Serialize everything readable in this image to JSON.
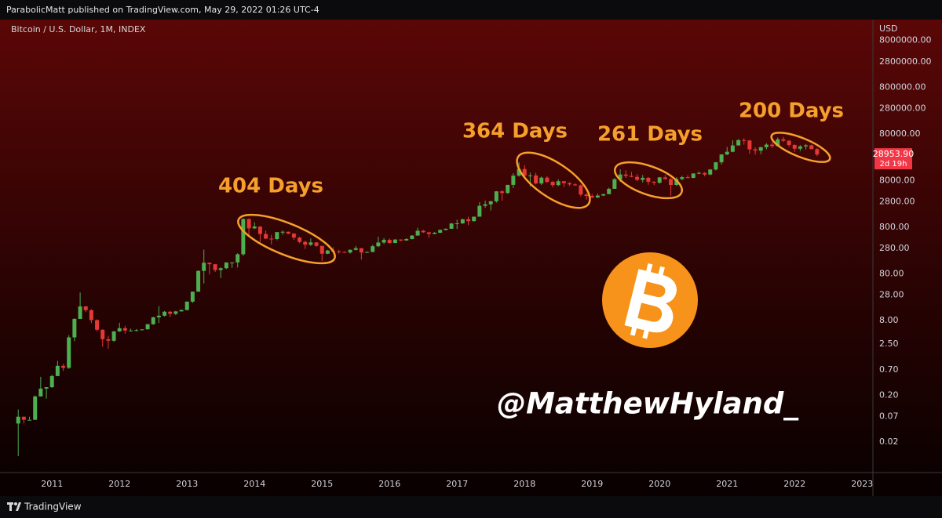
{
  "header": "ParabolicMatt published on TradingView.com, May 29, 2022 01:26 UTC-4",
  "footer": "TradingView",
  "chart_data": {
    "type": "candlestick",
    "title": "Bitcoin / U.S. Dollar, 1M, INDEX",
    "unit": "USD",
    "x": [
      2010.5,
      2010.583,
      2010.667,
      2010.75,
      2010.833,
      2010.917,
      2011,
      2011.083,
      2011.167,
      2011.25,
      2011.333,
      2011.417,
      2011.5,
      2011.583,
      2011.667,
      2011.75,
      2011.833,
      2011.917,
      2012,
      2012.083,
      2012.167,
      2012.25,
      2012.333,
      2012.417,
      2012.5,
      2012.583,
      2012.667,
      2012.75,
      2012.833,
      2012.917,
      2013,
      2013.083,
      2013.167,
      2013.25,
      2013.333,
      2013.417,
      2013.5,
      2013.583,
      2013.667,
      2013.75,
      2013.833,
      2013.917,
      2014,
      2014.083,
      2014.167,
      2014.25,
      2014.333,
      2014.417,
      2014.5,
      2014.583,
      2014.667,
      2014.75,
      2014.833,
      2014.917,
      2015,
      2015.083,
      2015.167,
      2015.25,
      2015.333,
      2015.417,
      2015.5,
      2015.583,
      2015.667,
      2015.75,
      2015.833,
      2015.917,
      2016,
      2016.083,
      2016.167,
      2016.25,
      2016.333,
      2016.417,
      2016.5,
      2016.583,
      2016.667,
      2016.75,
      2016.833,
      2016.917,
      2017,
      2017.083,
      2017.167,
      2017.25,
      2017.333,
      2017.417,
      2017.5,
      2017.583,
      2017.667,
      2017.75,
      2017.833,
      2017.917,
      2018,
      2018.083,
      2018.167,
      2018.25,
      2018.333,
      2018.417,
      2018.5,
      2018.583,
      2018.667,
      2018.75,
      2018.833,
      2018.917,
      2019,
      2019.083,
      2019.167,
      2019.25,
      2019.333,
      2019.417,
      2019.5,
      2019.583,
      2019.667,
      2019.75,
      2019.833,
      2019.917,
      2020,
      2020.083,
      2020.167,
      2020.25,
      2020.333,
      2020.417,
      2020.5,
      2020.583,
      2020.667,
      2020.75,
      2020.833,
      2020.917,
      2021,
      2021.083,
      2021.167,
      2021.25,
      2021.333,
      2021.417,
      2021.5,
      2021.583,
      2021.667,
      2021.75,
      2021.833,
      2021.917,
      2022,
      2022.083,
      2022.167,
      2022.25,
      2022.333
    ],
    "open": [
      0.05,
      0.07,
      0.06,
      0.06,
      0.19,
      0.28,
      0.3,
      0.52,
      0.86,
      0.78,
      3.5,
      8.7,
      16.1,
      13.4,
      8.2,
      5.1,
      3.2,
      2.97,
      4.7,
      5.5,
      4.9,
      4.9,
      5.0,
      5.2,
      6.7,
      9.4,
      10.2,
      12.4,
      11.2,
      12.6,
      13.5,
      20.4,
      33.4,
      93,
      139,
      129,
      97,
      106,
      141,
      141,
      211,
      1205,
      757,
      830,
      573,
      457,
      448,
      630,
      640,
      585,
      480,
      388,
      338,
      378,
      320,
      217,
      254,
      244,
      236,
      230,
      263,
      284,
      230,
      236,
      314,
      377,
      430,
      368,
      437,
      416,
      448,
      531,
      673,
      624,
      575,
      609,
      700,
      742,
      963,
      970,
      1190,
      1080,
      1348,
      2300,
      2480,
      2875,
      4700,
      4340,
      6470,
      10200,
      14150,
      10200,
      10300,
      6930,
      9240,
      7500,
      6400,
      7730,
      7030,
      6620,
      6320,
      4020,
      3740,
      3460,
      3820,
      4100,
      5320,
      8560,
      10800,
      10080,
      9600,
      8300,
      9150,
      7550,
      7190,
      9350,
      8600,
      6440,
      8630,
      9450,
      9140,
      11350,
      11650,
      10780,
      13800,
      19700,
      28990,
      33100,
      45200,
      58800,
      57700,
      37300,
      35040,
      41460,
      47100,
      43800,
      61300,
      57000,
      46300,
      38500,
      43200,
      45500,
      37700
    ],
    "high": [
      0.1,
      0.07,
      0.07,
      0.2,
      0.5,
      0.3,
      0.55,
      1.1,
      0.95,
      3.9,
      9.0,
      31.9,
      16.5,
      14.0,
      8.5,
      5.2,
      3.8,
      4.8,
      7.2,
      6.2,
      5.4,
      5.3,
      5.2,
      6.8,
      9.7,
      16.4,
      12.9,
      12.9,
      12.9,
      13.9,
      20.7,
      33.5,
      95,
      266,
      139,
      129,
      111,
      141,
      142,
      222,
      1242,
      1230,
      1020,
      835,
      680,
      550,
      630,
      680,
      650,
      600,
      500,
      415,
      460,
      385,
      320,
      263,
      300,
      263,
      246,
      268,
      318,
      285,
      243,
      335,
      502,
      468,
      462,
      442,
      440,
      466,
      541,
      780,
      702,
      626,
      630,
      720,
      755,
      980,
      1162,
      1210,
      1350,
      1350,
      2760,
      2980,
      2950,
      4760,
      4980,
      6470,
      11500,
      19800,
      17200,
      11800,
      11700,
      9750,
      10000,
      7780,
      8500,
      7760,
      7410,
      7000,
      6600,
      4300,
      4110,
      4200,
      4120,
      5620,
      9100,
      13900,
      13200,
      12300,
      10900,
      10500,
      9500,
      7750,
      9580,
      10520,
      9200,
      9460,
      10070,
      10430,
      11450,
      12480,
      12090,
      14100,
      19900,
      29300,
      41950,
      58350,
      61800,
      64900,
      59500,
      41300,
      42300,
      50500,
      52900,
      67000,
      69000,
      59100,
      47900,
      45800,
      48200,
      47400,
      40000
    ],
    "low": [
      0.01,
      0.05,
      0.06,
      0.06,
      0.19,
      0.17,
      0.29,
      0.52,
      0.67,
      0.74,
      2.9,
      8.7,
      12.2,
      7.1,
      4.7,
      2.2,
      2.0,
      2.8,
      4.6,
      4.2,
      4.7,
      4.7,
      4.9,
      5.2,
      6.5,
      7.1,
      9.8,
      9.6,
      10.5,
      12.6,
      13.2,
      19.1,
      33,
      50,
      78,
      88,
      65,
      102,
      108,
      110,
      195,
      522,
      730,
      380,
      450,
      340,
      422,
      550,
      565,
      430,
      364,
      275,
      318,
      305,
      152,
      212,
      237,
      217,
      228,
      219,
      253,
      162,
      225,
      236,
      300,
      350,
      355,
      366,
      400,
      414,
      440,
      531,
      606,
      480,
      568,
      605,
      684,
      741,
      735,
      946,
      890,
      1057,
      1343,
      2080,
      1830,
      2700,
      2970,
      4160,
      5510,
      9700,
      9400,
      6000,
      6600,
      6450,
      7100,
      5780,
      6070,
      5880,
      6130,
      6200,
      3650,
      3130,
      3400,
      3390,
      3730,
      4080,
      5320,
      7500,
      9100,
      9400,
      7800,
      7300,
      6500,
      6430,
      6850,
      8430,
      3800,
      6150,
      8100,
      8900,
      8970,
      10960,
      9900,
      10420,
      13200,
      17600,
      28100,
      32300,
      45000,
      47000,
      30000,
      28800,
      29300,
      37300,
      39600,
      43300,
      53300,
      42000,
      32900,
      34300,
      37200,
      37600,
      26700
    ],
    "close": [
      0.07,
      0.06,
      0.06,
      0.19,
      0.28,
      0.3,
      0.52,
      0.86,
      0.78,
      3.5,
      8.7,
      16.1,
      13.4,
      8.2,
      5.1,
      3.2,
      2.97,
      4.7,
      5.5,
      4.9,
      4.9,
      5.0,
      5.2,
      6.7,
      9.4,
      10.2,
      12.4,
      11.2,
      12.6,
      13.5,
      20.4,
      33.4,
      93,
      139,
      129,
      97,
      106,
      141,
      141,
      211,
      1205,
      757,
      830,
      573,
      457,
      448,
      630,
      640,
      585,
      480,
      388,
      338,
      378,
      320,
      217,
      254,
      244,
      236,
      230,
      263,
      284,
      230,
      236,
      314,
      377,
      430,
      368,
      437,
      416,
      448,
      531,
      673,
      624,
      575,
      609,
      700,
      742,
      963,
      970,
      1190,
      1080,
      1348,
      2300,
      2480,
      2875,
      4700,
      4340,
      6470,
      10200,
      14150,
      10200,
      10300,
      6930,
      9240,
      7500,
      6400,
      7730,
      7030,
      6620,
      6320,
      4020,
      3740,
      3460,
      3820,
      4100,
      5320,
      8560,
      10800,
      10080,
      9600,
      8300,
      9150,
      7550,
      7190,
      9350,
      8600,
      6440,
      8630,
      9450,
      9140,
      11350,
      11650,
      10780,
      13800,
      19700,
      28990,
      33100,
      45200,
      58800,
      57700,
      37300,
      35040,
      41460,
      47100,
      43800,
      61300,
      57000,
      46300,
      38500,
      43200,
      45500,
      37700,
      28953.9
    ],
    "xlim": [
      2010.23,
      2023.16
    ],
    "xticks": [
      2011,
      2012,
      2013,
      2014,
      2015,
      2016,
      2017,
      2018,
      2019,
      2020,
      2021,
      2022,
      2023
    ],
    "ylim": [
      0.005,
      20000000
    ],
    "yticks": [
      0.02,
      0.07,
      {
        "value": 0.2,
        "label": "0.20"
      },
      {
        "value": 0.7,
        "label": "0.70"
      },
      {
        "value": 2.5,
        "label": "2.50"
      },
      {
        "value": 8,
        "label": "8.00"
      },
      {
        "value": 28,
        "label": "28.00"
      },
      {
        "value": 80,
        "label": "80.00"
      },
      {
        "value": 280,
        "label": "280.00"
      },
      {
        "value": 800,
        "label": "800.00"
      },
      {
        "value": 2800,
        "label": "2800.00"
      },
      {
        "value": 8000,
        "label": "8000.00"
      },
      {
        "value": 80000,
        "label": "80000.00"
      },
      {
        "value": 280000,
        "label": "280000.00"
      },
      {
        "value": 800000,
        "label": "800000.00"
      },
      {
        "value": 2800000,
        "label": "2800000.00"
      },
      {
        "value": 8000000,
        "label": "8000000.00"
      }
    ],
    "log_scale": true,
    "grid": false,
    "up_color": "#4caf50",
    "down_color": "#e53935",
    "last_price_label": "28953.90",
    "countdown": "2d 19h",
    "annotations": [
      "404 Days",
      "364 Days",
      "261 Days",
      "200 Days"
    ],
    "annotation_color": "#f5a02a",
    "watermark": "@MatthewHyland_"
  }
}
